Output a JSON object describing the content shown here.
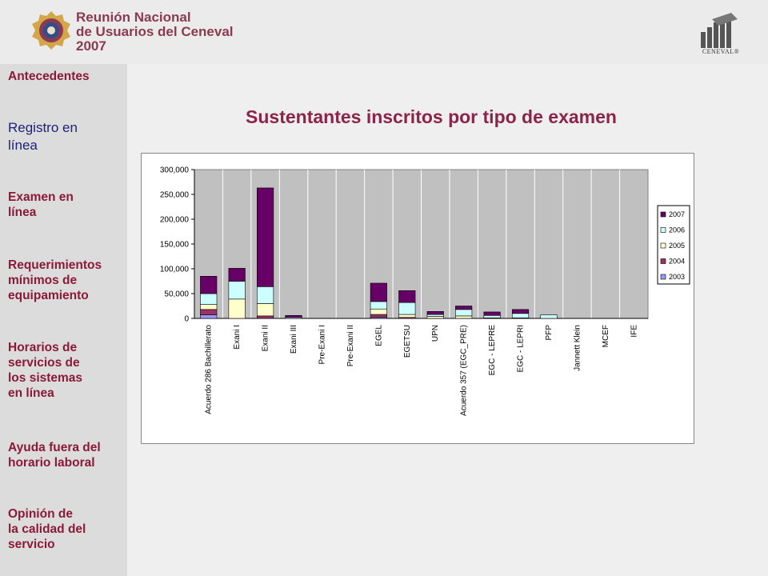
{
  "header": {
    "event_title_line1": "Reunión Nacional",
    "event_title_line2": "de Usuarios del Ceneval",
    "event_title_line3": "2007",
    "org_name": "CENEVAL®",
    "logo_icon": "ceneval-logo-icon",
    "event_icon": "event-emblem-icon"
  },
  "sidebar": {
    "items": [
      {
        "label": "Antecedentes"
      },
      {
        "label": "Registro en\nlínea",
        "active": true
      },
      {
        "label": "Examen en\nlínea"
      },
      {
        "label": "Requerimientos\nmínimos de\nequipamiento"
      },
      {
        "label": "Horarios de\nservicios de\nlos sistemas\nen línea"
      },
      {
        "label": "Ayuda fuera del\nhorario laboral"
      },
      {
        "label": "Opinión de\nla calidad del\nservicio"
      }
    ]
  },
  "colors": {
    "accent": "#8b2448",
    "active_nav": "#1f1f7a",
    "plot_bg": "#c0c0c0",
    "s2003": "#9999ff",
    "s2004": "#993366",
    "s2005": "#ffffcc",
    "s2006": "#ccffff",
    "s2007": "#660066"
  },
  "chart_data": {
    "type": "bar",
    "stacked": true,
    "title": "Sustentantes inscritos por tipo de examen",
    "xlabel": "",
    "ylabel": "",
    "ylim": [
      0,
      300000
    ],
    "yticks": [
      "300,000",
      "250,000",
      "200,000",
      "150,000",
      "100,000",
      "50,000",
      "0"
    ],
    "grid": true,
    "legend_position": "right",
    "categories": [
      "Acuerdo 286 Bachillerato",
      "Exani I",
      "Exani II",
      "Exani III",
      "Pre-Exani I",
      "Pre-Exani II",
      "EGEL",
      "EGETSU",
      "UPN",
      "Acuerdo 357 (EGC_PRE)",
      "EGC - LEPRE",
      "EGC - LEPRI",
      "PFP",
      "Jannett Klein",
      "MCEF",
      "IFE"
    ],
    "series": [
      {
        "name": "2003",
        "values": [
          7000,
          0,
          0,
          0,
          0,
          0,
          2000,
          0,
          0,
          0,
          0,
          0,
          0,
          0,
          0,
          0
        ]
      },
      {
        "name": "2004",
        "values": [
          11000,
          0,
          5000,
          0,
          0,
          0,
          6000,
          2000,
          0,
          0,
          0,
          0,
          0,
          0,
          0,
          0
        ]
      },
      {
        "name": "2005",
        "values": [
          10000,
          39000,
          25000,
          0,
          0,
          0,
          11000,
          6000,
          4000,
          5000,
          1000,
          1000,
          0,
          0,
          0,
          0
        ]
      },
      {
        "name": "2006",
        "values": [
          22000,
          36000,
          34000,
          2000,
          0,
          0,
          15000,
          24000,
          4000,
          13000,
          5000,
          9000,
          7000,
          0,
          0,
          0
        ]
      },
      {
        "name": "2007",
        "values": [
          35000,
          26000,
          199000,
          4000,
          0,
          0,
          37000,
          24000,
          6000,
          7000,
          7000,
          8000,
          0,
          0,
          0,
          0
        ]
      }
    ]
  }
}
